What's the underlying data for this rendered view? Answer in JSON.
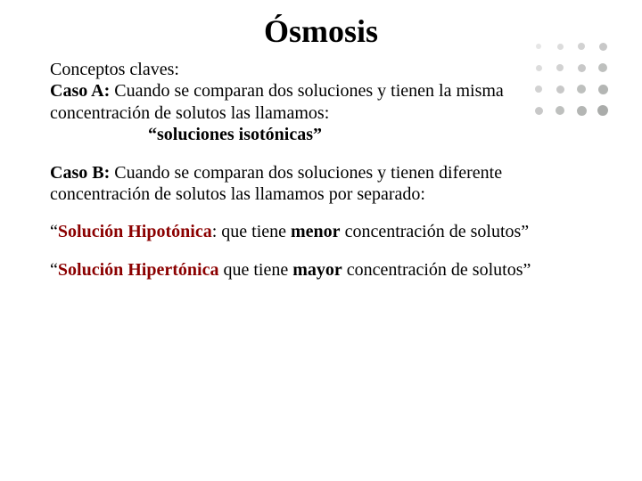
{
  "title": "Ósmosis",
  "paragraphs": {
    "conceptos": "Conceptos claves:",
    "casoA_label": "Caso A:",
    "casoA_rest": " Cuando se comparan dos soluciones y tienen la misma concentración de solutos las llamamos:",
    "isotonicas": "“soluciones isotónicas”",
    "casoB_label": "Caso B:",
    "casoB_rest": " Cuando se comparan dos soluciones y tienen diferente concentración de solutos las llamamos por separado:",
    "hipo_open": "“",
    "hipo_term": "Solución Hipotónica",
    "hipo_mid1": ": que tiene ",
    "hipo_bold": "menor",
    "hipo_rest": " concentración de solutos”",
    "hiper_open": "“",
    "hiper_term": "Solución Hipertónica",
    "hiper_mid1": " que tiene ",
    "hiper_bold": "mayor",
    "hiper_rest": " concentración de solutos”"
  },
  "dots": {
    "grid": 4,
    "spacing": 24,
    "colors": [
      "#e6e6e6",
      "#dcdcdc",
      "#d2d2d2",
      "#c8c8c8",
      "#bec0be",
      "#b4b6b4",
      "#aaacaa"
    ],
    "sizes": [
      6,
      7,
      8,
      9,
      10,
      11,
      12
    ]
  }
}
